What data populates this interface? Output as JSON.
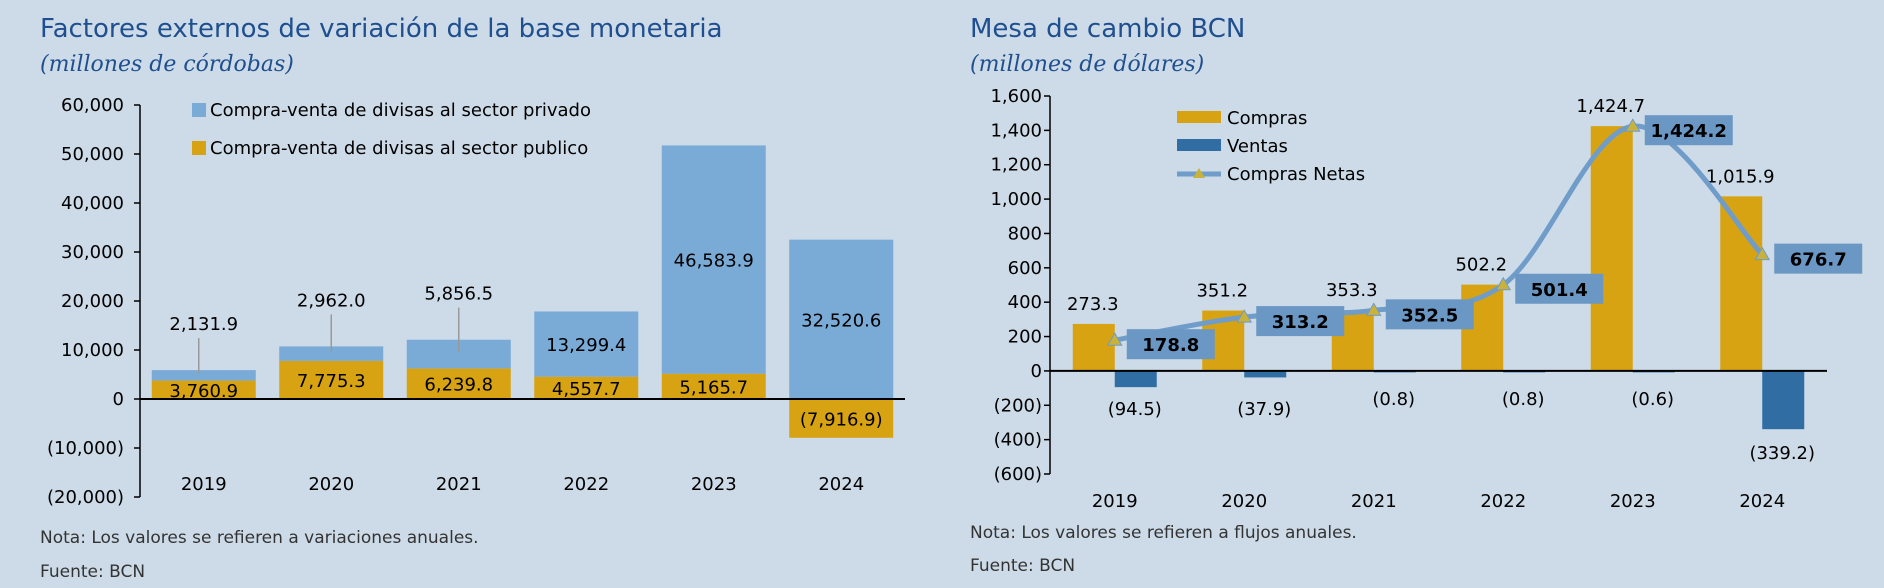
{
  "left": {
    "title": "Factores externos de variación de la base monetaria",
    "subtitle": "(millones de córdobas)",
    "note": "Nota: Los valores se refieren a variaciones anuales.",
    "source": "Fuente: BCN",
    "colors": {
      "privado": "#7aaad6",
      "publico": "#d7a312"
    },
    "chart_data": {
      "type": "bar",
      "stacked": true,
      "categories": [
        "2019",
        "2020",
        "2021",
        "2022",
        "2023",
        "2024"
      ],
      "series": [
        {
          "name": "Compra-venta de divisas al sector privado",
          "values": [
            2131.9,
            2962.0,
            5856.5,
            13299.4,
            46583.9,
            32520.6
          ],
          "labels": [
            "2,131.9",
            "2,962.0",
            "5,856.5",
            "13,299.4",
            "46,583.9",
            "32,520.6"
          ]
        },
        {
          "name": "Compra-venta de divisas al sector publico",
          "values": [
            3760.9,
            7775.3,
            6239.8,
            4557.7,
            5165.7,
            -7916.9
          ],
          "labels": [
            "3,760.9",
            "7,775.3",
            "6,239.8",
            "4,557.7",
            "5,165.7",
            "(7,916.9)"
          ]
        }
      ],
      "ylim": [
        -20000,
        60000
      ],
      "yticks": [
        60000,
        50000,
        40000,
        30000,
        20000,
        10000,
        0,
        -10000,
        -20000
      ],
      "yticklabels": [
        "60,000",
        "50,000",
        "40,000",
        "30,000",
        "20,000",
        "10,000",
        "0",
        "(10,000)",
        "(20,000)"
      ],
      "legend_position": "top-left"
    }
  },
  "right": {
    "title": "Mesa de cambio BCN",
    "subtitle": "(millones de dólares)",
    "note": "Nota: Los valores se refieren a flujos anuales.",
    "source": "Fuente: BCN",
    "colors": {
      "compras": "#d7a312",
      "ventas": "#2f6da3",
      "netas": "#6f9cc8",
      "marker": "#c9b23a",
      "label_box": "#6a97c4"
    },
    "chart_data": {
      "type": "bar",
      "categories": [
        "2019",
        "2020",
        "2021",
        "2022",
        "2023",
        "2024"
      ],
      "series": [
        {
          "name": "Compras",
          "type": "bar",
          "values": [
            273.3,
            351.2,
            353.3,
            502.2,
            1424.7,
            1015.9
          ],
          "labels": [
            "273.3",
            "351.2",
            "353.3",
            "502.2",
            "1,424.7",
            "1,015.9"
          ]
        },
        {
          "name": "Ventas",
          "type": "bar",
          "values": [
            -94.5,
            -37.9,
            -0.8,
            -0.8,
            -0.6,
            -339.2
          ],
          "labels": [
            "(94.5)",
            "(37.9)",
            "(0.8)",
            "(0.8)",
            "(0.6)",
            "(339.2)"
          ]
        },
        {
          "name": "Compras Netas",
          "type": "line",
          "values": [
            178.8,
            313.2,
            352.5,
            501.4,
            1424.2,
            676.7
          ],
          "labels": [
            "178.8",
            "313.2",
            "352.5",
            "501.4",
            "1,424.2",
            "676.7"
          ]
        }
      ],
      "ylim": [
        -600,
        1600
      ],
      "yticks": [
        1600,
        1400,
        1200,
        1000,
        800,
        600,
        400,
        200,
        0,
        -200,
        -400,
        -600
      ],
      "yticklabels": [
        "1,600",
        "1,400",
        "1,200",
        "1,000",
        "800",
        "600",
        "400",
        "200",
        "0",
        "(200)",
        "(400)",
        "(600)"
      ],
      "legend_position": "top-left"
    }
  }
}
